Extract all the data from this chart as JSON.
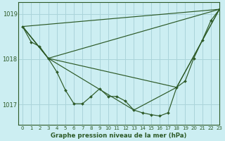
{
  "title": "Graphe pression niveau de la mer (hPa)",
  "bg_color": "#cceef2",
  "grid_color": "#aad4da",
  "line_color": "#2d5a27",
  "xlim": [
    -0.5,
    23
  ],
  "ylim": [
    1016.55,
    1019.25
  ],
  "yticks": [
    1017,
    1018,
    1019
  ],
  "xticks": [
    0,
    1,
    2,
    3,
    4,
    5,
    6,
    7,
    8,
    9,
    10,
    11,
    12,
    13,
    14,
    15,
    16,
    17,
    18,
    19,
    20,
    21,
    22,
    23
  ],
  "main_line": {
    "x": [
      0,
      1,
      2,
      3,
      4,
      5,
      6,
      7,
      8,
      9,
      10,
      11,
      12,
      13,
      14,
      15,
      16,
      17,
      18,
      19,
      20,
      21,
      22,
      23
    ],
    "y": [
      1018.72,
      1018.38,
      1018.28,
      1018.02,
      1017.72,
      1017.32,
      1017.02,
      1017.02,
      1017.18,
      1017.35,
      1017.18,
      1017.18,
      1017.08,
      1016.88,
      1016.82,
      1016.78,
      1016.75,
      1016.82,
      1017.38,
      1017.52,
      1018.02,
      1018.42,
      1018.85,
      1019.1
    ]
  },
  "extra_lines": [
    {
      "x": [
        0,
        23
      ],
      "y": [
        1018.72,
        1019.1
      ]
    },
    {
      "x": [
        0,
        3,
        23
      ],
      "y": [
        1018.72,
        1018.02,
        1019.1
      ]
    },
    {
      "x": [
        0,
        3,
        18,
        23
      ],
      "y": [
        1018.72,
        1018.02,
        1017.38,
        1019.1
      ]
    },
    {
      "x": [
        0,
        3,
        13,
        18,
        23
      ],
      "y": [
        1018.72,
        1018.02,
        1016.88,
        1017.38,
        1019.1
      ]
    }
  ]
}
